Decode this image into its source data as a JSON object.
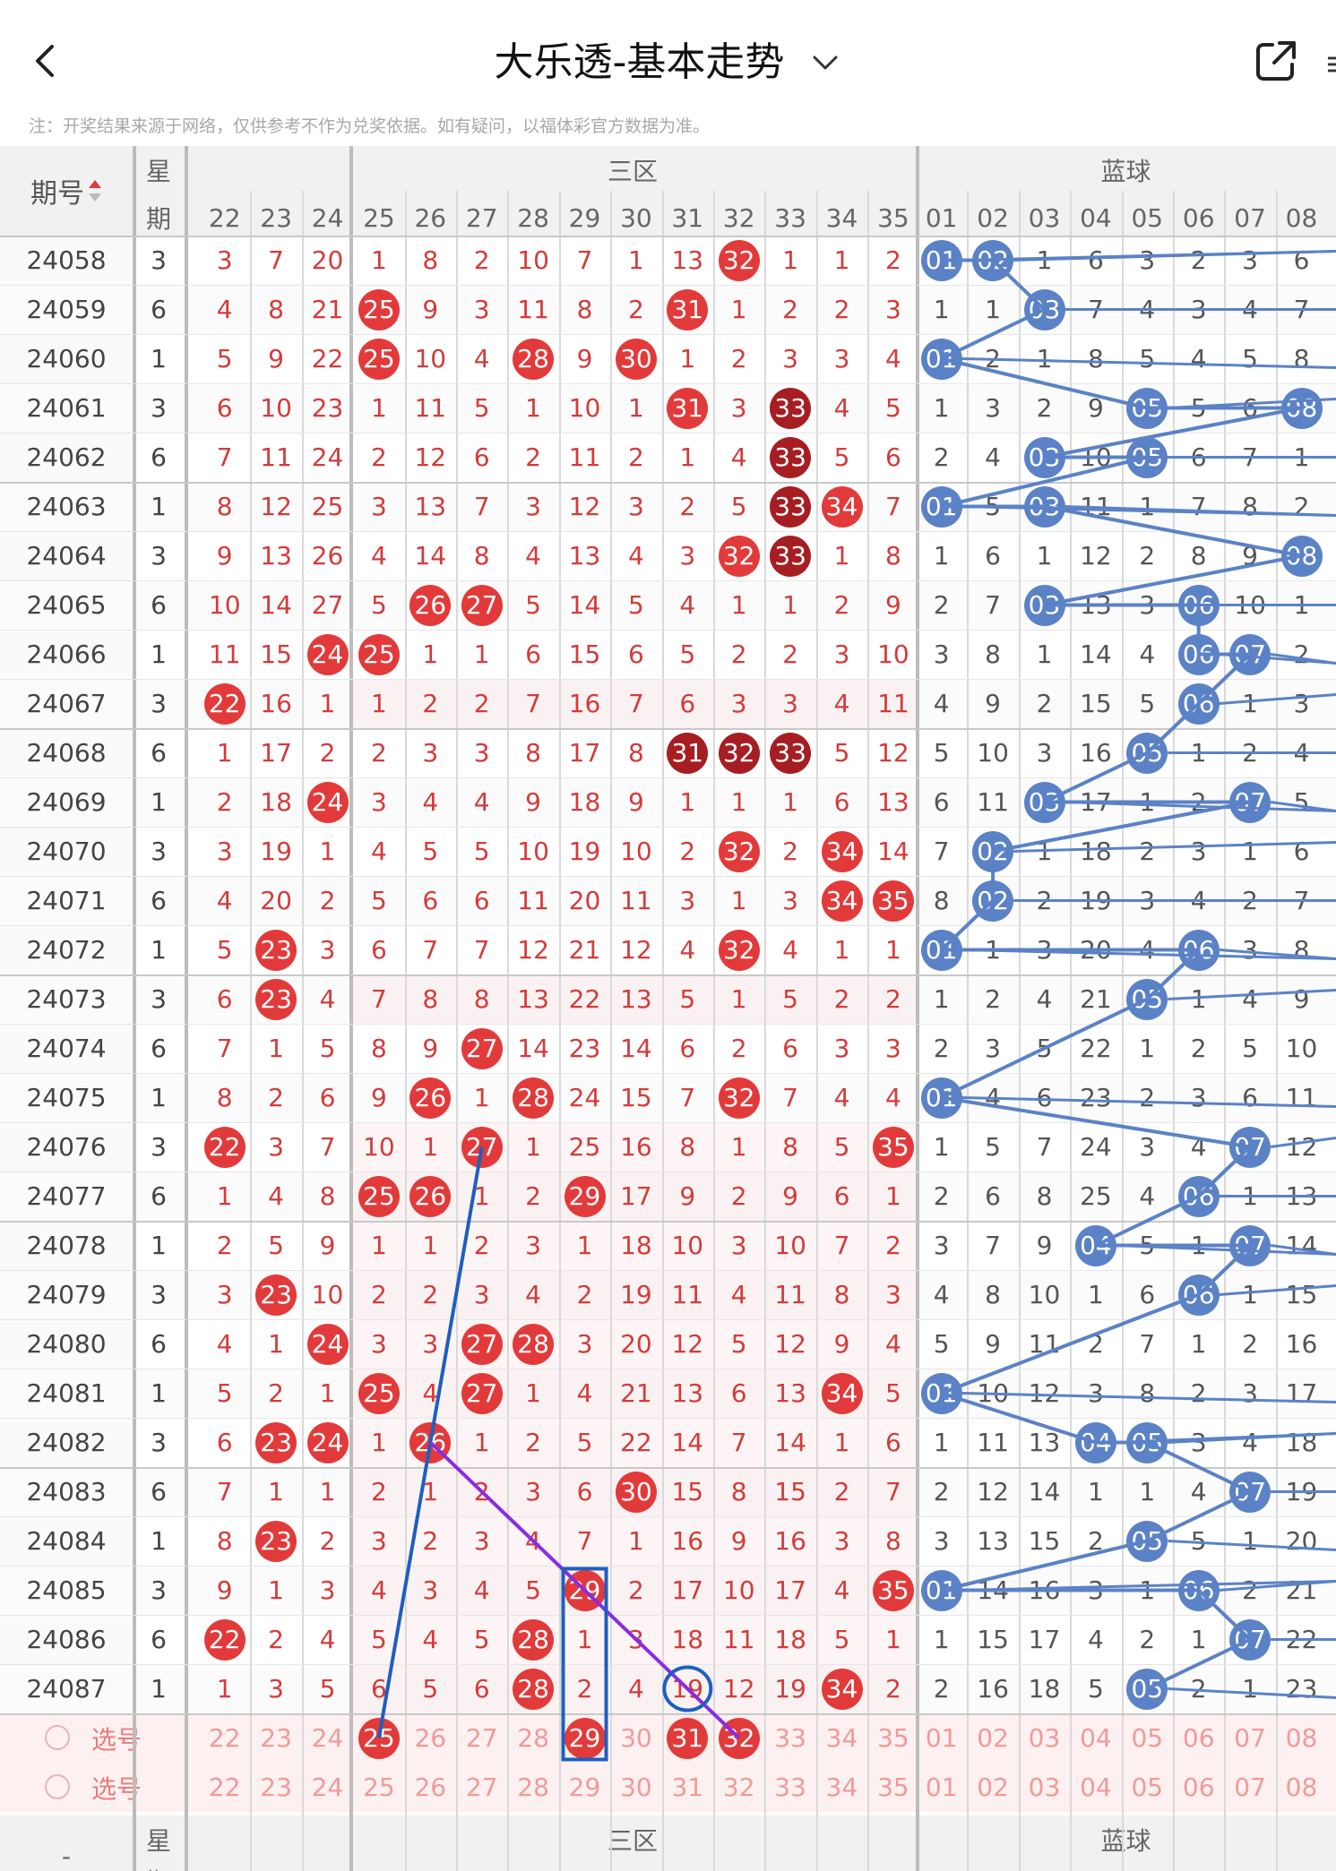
{
  "header": {
    "title": "大乐透-基本走势",
    "back_icon": "chevron-left-icon",
    "share_icon": "share-icon",
    "edge_char": "≡"
  },
  "notice": "注：开奖结果来源于网络，仅供参考不作为兑奖依据。如有疑问，以福体彩官方数据为准。",
  "table": {
    "issue_header": "期号",
    "week_header_1": "星",
    "week_header_2": "期",
    "zone_front": "三区",
    "zone_back": "蓝球",
    "front_cols": [
      "22",
      "23",
      "24",
      "25",
      "26",
      "27",
      "28",
      "29",
      "30",
      "31",
      "32",
      "33",
      "34",
      "35"
    ],
    "back_cols": [
      "01",
      "02",
      "03",
      "04",
      "05",
      "06",
      "07",
      "08"
    ],
    "rows": [
      {
        "id": "24058",
        "w": "3",
        "f": [
          "3",
          "7",
          "20",
          "1",
          "8",
          "2",
          "10",
          "7",
          "1",
          "13",
          "32",
          "1",
          "1",
          "2"
        ],
        "fh": [
          10
        ],
        "b": [
          "01",
          "02",
          "1",
          "6",
          "3",
          "2",
          "3",
          "6"
        ],
        "bh": [
          0,
          1
        ]
      },
      {
        "id": "24059",
        "w": "6",
        "f": [
          "4",
          "8",
          "21",
          "25",
          "9",
          "3",
          "11",
          "8",
          "2",
          "31",
          "1",
          "2",
          "2",
          "3"
        ],
        "fh": [
          3,
          9
        ],
        "b": [
          "1",
          "1",
          "03",
          "7",
          "4",
          "3",
          "4",
          "7"
        ],
        "bh": [
          2
        ]
      },
      {
        "id": "24060",
        "w": "1",
        "f": [
          "5",
          "9",
          "22",
          "25",
          "10",
          "4",
          "28",
          "9",
          "30",
          "1",
          "2",
          "3",
          "3",
          "4"
        ],
        "fh": [
          3,
          6,
          8
        ],
        "b": [
          "01",
          "2",
          "1",
          "8",
          "5",
          "4",
          "5",
          "8"
        ],
        "bh": [
          0
        ]
      },
      {
        "id": "24061",
        "w": "3",
        "f": [
          "6",
          "10",
          "23",
          "1",
          "11",
          "5",
          "1",
          "10",
          "1",
          "31",
          "3",
          "33",
          "4",
          "5"
        ],
        "fh": [
          9,
          11
        ],
        "dk": [
          11
        ],
        "b": [
          "1",
          "3",
          "2",
          "9",
          "05",
          "5",
          "6",
          "08"
        ],
        "bh": [
          4,
          7
        ]
      },
      {
        "id": "24062",
        "w": "6",
        "f": [
          "7",
          "11",
          "24",
          "2",
          "12",
          "6",
          "2",
          "11",
          "2",
          "1",
          "4",
          "33",
          "5",
          "6"
        ],
        "fh": [
          11
        ],
        "dk": [
          11
        ],
        "b": [
          "2",
          "4",
          "03",
          "10",
          "05",
          "6",
          "7",
          "1"
        ],
        "bh": [
          2,
          4
        ]
      },
      {
        "id": "24063",
        "w": "1",
        "f": [
          "8",
          "12",
          "25",
          "3",
          "13",
          "7",
          "3",
          "12",
          "3",
          "2",
          "5",
          "33",
          "34",
          "7"
        ],
        "fh": [
          11,
          12
        ],
        "dk": [
          11
        ],
        "b": [
          "01",
          "5",
          "03",
          "11",
          "1",
          "7",
          "8",
          "2"
        ],
        "bh": [
          0,
          2
        ]
      },
      {
        "id": "24064",
        "w": "3",
        "f": [
          "9",
          "13",
          "26",
          "4",
          "14",
          "8",
          "4",
          "13",
          "4",
          "3",
          "32",
          "33",
          "1",
          "8"
        ],
        "fh": [
          10,
          11
        ],
        "dk": [
          11
        ],
        "b": [
          "1",
          "6",
          "1",
          "12",
          "2",
          "8",
          "9",
          "08"
        ],
        "bh": [
          7
        ]
      },
      {
        "id": "24065",
        "w": "6",
        "f": [
          "10",
          "14",
          "27",
          "5",
          "26",
          "27",
          "5",
          "14",
          "5",
          "4",
          "1",
          "1",
          "2",
          "9"
        ],
        "fh": [
          4,
          5
        ],
        "b": [
          "2",
          "7",
          "03",
          "13",
          "3",
          "06",
          "10",
          "1"
        ],
        "bh": [
          2,
          5
        ]
      },
      {
        "id": "24066",
        "w": "1",
        "f": [
          "11",
          "15",
          "24",
          "25",
          "1",
          "1",
          "6",
          "15",
          "6",
          "5",
          "2",
          "2",
          "3",
          "10"
        ],
        "fh": [
          2,
          3
        ],
        "b": [
          "3",
          "8",
          "1",
          "14",
          "4",
          "06",
          "07",
          "2"
        ],
        "bh": [
          5,
          6
        ]
      },
      {
        "id": "24067",
        "w": "3",
        "f": [
          "22",
          "16",
          "1",
          "1",
          "2",
          "2",
          "7",
          "16",
          "7",
          "6",
          "3",
          "3",
          "4",
          "11"
        ],
        "fh": [
          0
        ],
        "b": [
          "4",
          "9",
          "2",
          "15",
          "5",
          "06",
          "1",
          "3"
        ],
        "bh": [
          5
        ]
      },
      {
        "id": "24068",
        "w": "6",
        "f": [
          "1",
          "17",
          "2",
          "2",
          "3",
          "3",
          "8",
          "17",
          "8",
          "31",
          "32",
          "33",
          "5",
          "12"
        ],
        "fh": [
          9,
          10,
          11
        ],
        "dk": [
          9,
          10,
          11
        ],
        "b": [
          "5",
          "10",
          "3",
          "16",
          "05",
          "1",
          "2",
          "4"
        ],
        "bh": [
          4
        ]
      },
      {
        "id": "24069",
        "w": "1",
        "f": [
          "2",
          "18",
          "24",
          "3",
          "4",
          "4",
          "9",
          "18",
          "9",
          "1",
          "1",
          "1",
          "6",
          "13"
        ],
        "fh": [
          2
        ],
        "b": [
          "6",
          "11",
          "03",
          "17",
          "1",
          "2",
          "07",
          "5"
        ],
        "bh": [
          2,
          6
        ]
      },
      {
        "id": "24070",
        "w": "3",
        "f": [
          "3",
          "19",
          "1",
          "4",
          "5",
          "5",
          "10",
          "19",
          "10",
          "2",
          "32",
          "2",
          "34",
          "14"
        ],
        "fh": [
          10,
          12
        ],
        "b": [
          "7",
          "02",
          "1",
          "18",
          "2",
          "3",
          "1",
          "6"
        ],
        "bh": [
          1
        ]
      },
      {
        "id": "24071",
        "w": "6",
        "f": [
          "4",
          "20",
          "2",
          "5",
          "6",
          "6",
          "11",
          "20",
          "11",
          "3",
          "1",
          "3",
          "34",
          "35"
        ],
        "fh": [
          12,
          13
        ],
        "b": [
          "8",
          "02",
          "2",
          "19",
          "3",
          "4",
          "2",
          "7"
        ],
        "bh": [
          1
        ]
      },
      {
        "id": "24072",
        "w": "1",
        "f": [
          "5",
          "23",
          "3",
          "6",
          "7",
          "7",
          "12",
          "21",
          "12",
          "4",
          "32",
          "4",
          "1",
          "1"
        ],
        "fh": [
          1,
          10
        ],
        "b": [
          "01",
          "1",
          "3",
          "20",
          "4",
          "06",
          "3",
          "8"
        ],
        "bh": [
          0,
          5
        ]
      },
      {
        "id": "24073",
        "w": "3",
        "f": [
          "6",
          "23",
          "4",
          "7",
          "8",
          "8",
          "13",
          "22",
          "13",
          "5",
          "1",
          "5",
          "2",
          "2"
        ],
        "fh": [
          1
        ],
        "b": [
          "1",
          "2",
          "4",
          "21",
          "05",
          "1",
          "4",
          "9"
        ],
        "bh": [
          4
        ]
      },
      {
        "id": "24074",
        "w": "6",
        "f": [
          "7",
          "1",
          "5",
          "8",
          "9",
          "27",
          "14",
          "23",
          "14",
          "6",
          "2",
          "6",
          "3",
          "3"
        ],
        "fh": [
          5
        ],
        "b": [
          "2",
          "3",
          "5",
          "22",
          "1",
          "2",
          "5",
          "10"
        ],
        "bh": []
      },
      {
        "id": "24075",
        "w": "1",
        "f": [
          "8",
          "2",
          "6",
          "9",
          "26",
          "1",
          "28",
          "24",
          "15",
          "7",
          "32",
          "7",
          "4",
          "4"
        ],
        "fh": [
          4,
          6,
          10
        ],
        "b": [
          "01",
          "4",
          "6",
          "23",
          "2",
          "3",
          "6",
          "11"
        ],
        "bh": [
          0
        ]
      },
      {
        "id": "24076",
        "w": "3",
        "f": [
          "22",
          "3",
          "7",
          "10",
          "1",
          "27",
          "1",
          "25",
          "16",
          "8",
          "1",
          "8",
          "5",
          "35"
        ],
        "fh": [
          0,
          5,
          13
        ],
        "b": [
          "1",
          "5",
          "7",
          "24",
          "3",
          "4",
          "07",
          "12"
        ],
        "bh": [
          6
        ]
      },
      {
        "id": "24077",
        "w": "6",
        "f": [
          "1",
          "4",
          "8",
          "25",
          "26",
          "1",
          "2",
          "29",
          "17",
          "9",
          "2",
          "9",
          "6",
          "1"
        ],
        "fh": [
          3,
          4,
          7
        ],
        "b": [
          "2",
          "6",
          "8",
          "25",
          "4",
          "06",
          "1",
          "13"
        ],
        "bh": [
          5
        ]
      },
      {
        "id": "24078",
        "w": "1",
        "f": [
          "2",
          "5",
          "9",
          "1",
          "1",
          "2",
          "3",
          "1",
          "18",
          "10",
          "3",
          "10",
          "7",
          "2"
        ],
        "fh": [],
        "b": [
          "3",
          "7",
          "9",
          "04",
          "5",
          "1",
          "07",
          "14"
        ],
        "bh": [
          3,
          6
        ]
      },
      {
        "id": "24079",
        "w": "3",
        "f": [
          "3",
          "23",
          "10",
          "2",
          "2",
          "3",
          "4",
          "2",
          "19",
          "11",
          "4",
          "11",
          "8",
          "3"
        ],
        "fh": [
          1
        ],
        "b": [
          "4",
          "8",
          "10",
          "1",
          "6",
          "06",
          "1",
          "15"
        ],
        "bh": [
          5
        ]
      },
      {
        "id": "24080",
        "w": "6",
        "f": [
          "4",
          "1",
          "24",
          "3",
          "3",
          "27",
          "28",
          "3",
          "20",
          "12",
          "5",
          "12",
          "9",
          "4"
        ],
        "fh": [
          2,
          5,
          6
        ],
        "b": [
          "5",
          "9",
          "11",
          "2",
          "7",
          "1",
          "2",
          "16"
        ],
        "bh": []
      },
      {
        "id": "24081",
        "w": "1",
        "f": [
          "5",
          "2",
          "1",
          "25",
          "4",
          "27",
          "1",
          "4",
          "21",
          "13",
          "6",
          "13",
          "34",
          "5"
        ],
        "fh": [
          3,
          5,
          12
        ],
        "b": [
          "01",
          "10",
          "12",
          "3",
          "8",
          "2",
          "3",
          "17"
        ],
        "bh": [
          0
        ]
      },
      {
        "id": "24082",
        "w": "3",
        "f": [
          "6",
          "23",
          "24",
          "1",
          "26",
          "1",
          "2",
          "5",
          "22",
          "14",
          "7",
          "14",
          "1",
          "6"
        ],
        "fh": [
          1,
          2,
          4
        ],
        "b": [
          "1",
          "11",
          "13",
          "04",
          "05",
          "3",
          "4",
          "18"
        ],
        "bh": [
          3,
          4
        ]
      },
      {
        "id": "24083",
        "w": "6",
        "f": [
          "7",
          "1",
          "1",
          "2",
          "1",
          "2",
          "3",
          "6",
          "30",
          "15",
          "8",
          "15",
          "2",
          "7"
        ],
        "fh": [
          8
        ],
        "b": [
          "2",
          "12",
          "14",
          "1",
          "1",
          "4",
          "07",
          "19"
        ],
        "bh": [
          6
        ]
      },
      {
        "id": "24084",
        "w": "1",
        "f": [
          "8",
          "23",
          "2",
          "3",
          "2",
          "3",
          "4",
          "7",
          "1",
          "16",
          "9",
          "16",
          "3",
          "8"
        ],
        "fh": [
          1
        ],
        "b": [
          "3",
          "13",
          "15",
          "2",
          "05",
          "5",
          "1",
          "20"
        ],
        "bh": [
          4
        ]
      },
      {
        "id": "24085",
        "w": "3",
        "f": [
          "9",
          "1",
          "3",
          "4",
          "3",
          "4",
          "5",
          "29",
          "2",
          "17",
          "10",
          "17",
          "4",
          "35"
        ],
        "fh": [
          7,
          13
        ],
        "b": [
          "01",
          "14",
          "16",
          "3",
          "1",
          "06",
          "2",
          "21"
        ],
        "bh": [
          0,
          5
        ]
      },
      {
        "id": "24086",
        "w": "6",
        "f": [
          "22",
          "2",
          "4",
          "5",
          "4",
          "5",
          "28",
          "1",
          "3",
          "18",
          "11",
          "18",
          "5",
          "1"
        ],
        "fh": [
          0,
          6
        ],
        "b": [
          "1",
          "15",
          "17",
          "4",
          "2",
          "1",
          "07",
          "22"
        ],
        "bh": [
          6
        ]
      },
      {
        "id": "24087",
        "w": "1",
        "f": [
          "1",
          "3",
          "5",
          "6",
          "5",
          "6",
          "28",
          "2",
          "4",
          "19",
          "12",
          "19",
          "34",
          "2"
        ],
        "fh": [
          6,
          12
        ],
        "b": [
          "2",
          "16",
          "18",
          "5",
          "05",
          "2",
          "1",
          "23"
        ],
        "bh": [
          4
        ]
      }
    ],
    "picker_label": "选号",
    "pick1_selected": [
      3,
      7,
      9,
      10
    ],
    "bottom_week_1": "星",
    "bottom_week_2": "期",
    "bottom_issue": "-"
  },
  "colors": {
    "red_ball": "#e23a3a",
    "dark_ball": "#a61d22",
    "blue_ball": "#5b82c6",
    "red_text": "#d43b3b"
  }
}
